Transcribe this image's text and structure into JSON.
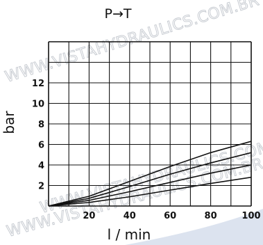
{
  "chart_data": {
    "type": "line",
    "title": "P→T",
    "xlabel": "l / min",
    "ylabel": "bar",
    "xlim": [
      0,
      100
    ],
    "ylim": [
      0,
      16
    ],
    "x_ticks": [
      "20",
      "40",
      "60",
      "80",
      "100"
    ],
    "y_ticks": [
      "2",
      "4",
      "6",
      "8",
      "10",
      "12"
    ],
    "grid": true,
    "legend": "none",
    "series": [
      {
        "x": [
          0,
          20,
          40,
          60,
          80,
          100
        ],
        "values": [
          0,
          0.35,
          0.9,
          1.55,
          2.2,
          2.8
        ]
      },
      {
        "x": [
          0,
          20,
          40,
          60,
          80,
          100
        ],
        "values": [
          0,
          0.55,
          1.4,
          2.3,
          3.2,
          4.0
        ]
      },
      {
        "x": [
          0,
          20,
          40,
          60,
          80,
          100
        ],
        "values": [
          0,
          0.75,
          1.9,
          3.1,
          4.2,
          5.2
        ]
      },
      {
        "x": [
          0,
          20,
          40,
          60,
          80,
          100
        ],
        "values": [
          0,
          0.95,
          2.4,
          3.85,
          5.2,
          6.3
        ]
      }
    ]
  },
  "watermark": {
    "top": "WWW.VISTAHYDRAULICS.COM.BR",
    "middle": "WWW.VISTAHYDRAULICS.COM.BR",
    "bottom": "WWW.VISTAHYDRAULICS.COM.BR"
  },
  "colors": {
    "ink": "#111111",
    "watermark": "#c8ccd2",
    "corner_accent": "#dce3ef"
  }
}
